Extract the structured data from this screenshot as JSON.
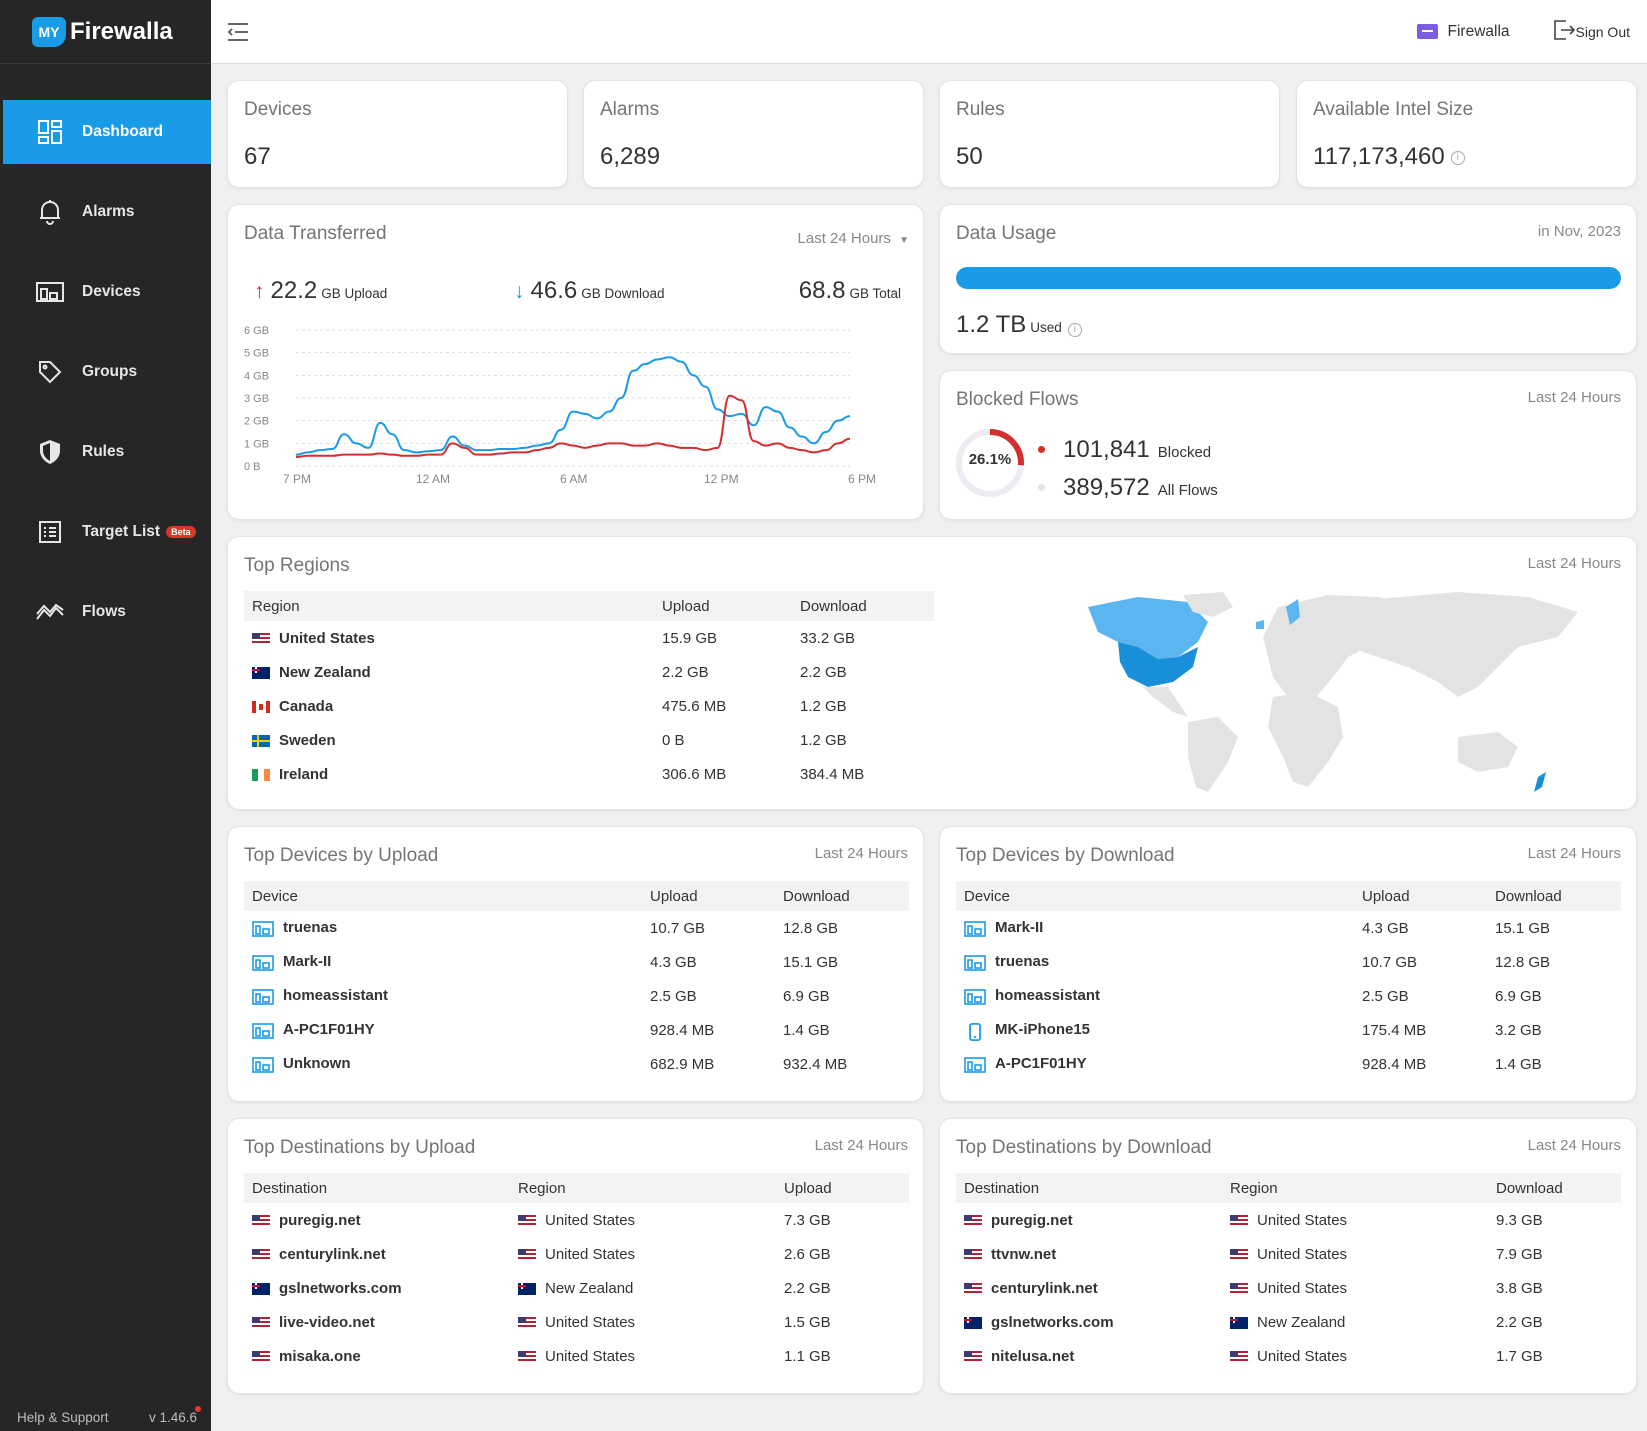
{
  "app": {
    "logo_badge": "MY",
    "logo_text": "Firewalla"
  },
  "sidebar": {
    "items": [
      {
        "label": "Dashboard",
        "icon": "dashboard-icon",
        "active": true
      },
      {
        "label": "Alarms",
        "icon": "bell-icon"
      },
      {
        "label": "Devices",
        "icon": "devices-icon"
      },
      {
        "label": "Groups",
        "icon": "tag-icon"
      },
      {
        "label": "Rules",
        "icon": "shield-icon"
      },
      {
        "label": "Target List",
        "icon": "list-icon",
        "badge": "Beta"
      },
      {
        "label": "Flows",
        "icon": "flows-icon"
      }
    ],
    "help": "Help & Support",
    "version": "v 1.46.6"
  },
  "header": {
    "box_name": "Firewalla",
    "signout": "Sign Out"
  },
  "stats": [
    {
      "label": "Devices",
      "value": "67"
    },
    {
      "label": "Alarms",
      "value": "6,289"
    },
    {
      "label": "Rules",
      "value": "50"
    },
    {
      "label": "Available Intel Size",
      "value": "117,173,460",
      "info": "i"
    }
  ],
  "data_transferred": {
    "title": "Data Transferred",
    "period": "Last 24 Hours",
    "upload": {
      "value": "22.2",
      "unit": "GB Upload"
    },
    "download": {
      "value": "46.6",
      "unit": "GB Download"
    },
    "total": {
      "value": "68.8",
      "unit": "GB Total"
    }
  },
  "chart_data": {
    "type": "line",
    "x_ticks": [
      "7 PM",
      "12 AM",
      "6 AM",
      "12 PM",
      "6 PM"
    ],
    "y_ticks": [
      "0 B",
      "1 GB",
      "2 GB",
      "3 GB",
      "4 GB",
      "5 GB",
      "6 GB"
    ],
    "ylim": [
      0,
      6
    ],
    "x_range": [
      0,
      23
    ],
    "grid": true,
    "series": [
      {
        "color": "#1a9be8",
        "x": [
          0,
          0.5,
          1,
          1.5,
          2,
          2.5,
          3,
          3.5,
          4,
          4.5,
          5,
          5.5,
          6,
          6.5,
          7,
          7.5,
          8,
          8.5,
          9,
          9.5,
          10,
          10.5,
          11,
          11.5,
          12,
          12.5,
          13,
          13.5,
          14,
          14.5,
          15,
          15.5,
          16,
          16.5,
          17,
          17.5,
          18,
          18.5,
          19,
          19.5,
          20,
          20.5,
          21,
          21.5,
          22,
          22.5,
          23
        ],
        "values": [
          0.5,
          0.6,
          0.7,
          0.75,
          1.4,
          1.0,
          0.8,
          1.9,
          1.4,
          0.7,
          0.6,
          0.65,
          0.7,
          1.3,
          0.9,
          0.7,
          0.7,
          0.75,
          0.75,
          0.8,
          0.9,
          1.0,
          1.6,
          2.4,
          2.3,
          2.1,
          2.4,
          3.0,
          4.2,
          4.5,
          4.7,
          4.8,
          4.6,
          4.0,
          3.5,
          2.5,
          2.2,
          2.3,
          1.8,
          2.6,
          2.4,
          1.7,
          1.3,
          1.0,
          1.5,
          2.0,
          2.2
        ]
      },
      {
        "color": "#d32f2f",
        "x": [
          0,
          0.5,
          1,
          1.5,
          2,
          2.5,
          3,
          3.5,
          4,
          4.5,
          5,
          5.5,
          6,
          6.5,
          7,
          7.5,
          8,
          8.5,
          9,
          9.5,
          10,
          10.5,
          11,
          11.5,
          12,
          12.5,
          13,
          13.5,
          14,
          14.5,
          15,
          15.5,
          16,
          16.5,
          17,
          17.5,
          18,
          18.5,
          19,
          19.5,
          20,
          20.5,
          21,
          21.5,
          22,
          22.5,
          23
        ],
        "values": [
          0.4,
          0.45,
          0.45,
          0.45,
          0.5,
          0.5,
          0.5,
          0.55,
          0.5,
          0.45,
          0.45,
          0.5,
          0.5,
          1.0,
          0.8,
          0.5,
          0.5,
          0.55,
          0.6,
          0.6,
          0.7,
          0.8,
          1.0,
          0.9,
          0.8,
          0.9,
          1.0,
          1.0,
          0.9,
          0.9,
          1.0,
          0.9,
          0.8,
          0.8,
          0.7,
          0.8,
          3.1,
          2.9,
          1.1,
          0.9,
          1.0,
          0.8,
          0.7,
          0.6,
          0.7,
          1.0,
          1.2
        ]
      }
    ]
  },
  "data_usage": {
    "title": "Data Usage",
    "period": "in Nov, 2023",
    "value": "1.2 TB",
    "unit": "Used",
    "fill": 1.0,
    "info": "i"
  },
  "blocked_flows": {
    "title": "Blocked Flows",
    "period": "Last 24 Hours",
    "percent_label": "26.1%",
    "percent": 26.1,
    "blocked": "101,841",
    "blocked_label": "Blocked",
    "all": "389,572",
    "all_label": "All Flows"
  },
  "top_regions": {
    "title": "Top Regions",
    "period": "Last 24 Hours",
    "headers": [
      "Region",
      "Upload",
      "Download"
    ],
    "rows": [
      {
        "flag": "us",
        "name": "United States",
        "upload": "15.9 GB",
        "download": "33.2 GB"
      },
      {
        "flag": "nz",
        "name": "New Zealand",
        "upload": "2.2 GB",
        "download": "2.2 GB"
      },
      {
        "flag": "ca",
        "name": "Canada",
        "upload": "475.6 MB",
        "download": "1.2 GB"
      },
      {
        "flag": "se",
        "name": "Sweden",
        "upload": "0 B",
        "download": "1.2 GB"
      },
      {
        "flag": "ie",
        "name": "Ireland",
        "upload": "306.6 MB",
        "download": "384.4 MB"
      }
    ]
  },
  "top_devices_upload": {
    "title": "Top Devices by Upload",
    "period": "Last 24 Hours",
    "headers": [
      "Device",
      "Upload",
      "Download"
    ],
    "rows": [
      {
        "icon": "computer-icon",
        "name": "truenas",
        "upload": "10.7 GB",
        "download": "12.8 GB"
      },
      {
        "icon": "computer-icon",
        "name": "Mark-II",
        "upload": "4.3 GB",
        "download": "15.1 GB"
      },
      {
        "icon": "computer-icon",
        "name": "homeassistant",
        "upload": "2.5 GB",
        "download": "6.9 GB"
      },
      {
        "icon": "computer-icon",
        "name": "A-PC1F01HY",
        "upload": "928.4 MB",
        "download": "1.4 GB"
      },
      {
        "icon": "computer-icon",
        "name": "Unknown",
        "upload": "682.9 MB",
        "download": "932.4 MB"
      }
    ]
  },
  "top_devices_download": {
    "title": "Top Devices by Download",
    "period": "Last 24 Hours",
    "headers": [
      "Device",
      "Upload",
      "Download"
    ],
    "rows": [
      {
        "icon": "computer-icon",
        "name": "Mark-II",
        "upload": "4.3 GB",
        "download": "15.1 GB"
      },
      {
        "icon": "computer-icon",
        "name": "truenas",
        "upload": "10.7 GB",
        "download": "12.8 GB"
      },
      {
        "icon": "computer-icon",
        "name": "homeassistant",
        "upload": "2.5 GB",
        "download": "6.9 GB"
      },
      {
        "icon": "phone-icon",
        "name": "MK-iPhone15",
        "upload": "175.4 MB",
        "download": "3.2 GB"
      },
      {
        "icon": "computer-icon",
        "name": "A-PC1F01HY",
        "upload": "928.4 MB",
        "download": "1.4 GB"
      }
    ]
  },
  "top_dest_upload": {
    "title": "Top Destinations by Upload",
    "period": "Last 24 Hours",
    "headers": [
      "Destination",
      "Region",
      "Upload"
    ],
    "rows": [
      {
        "name": "puregig.net",
        "flag": "us",
        "region": "United States",
        "value": "7.3 GB"
      },
      {
        "name": "centurylink.net",
        "flag": "us",
        "region": "United States",
        "value": "2.6 GB"
      },
      {
        "name": "gslnetworks.com",
        "flag": "nz",
        "region": "New Zealand",
        "value": "2.2 GB"
      },
      {
        "name": "live-video.net",
        "flag": "us",
        "region": "United States",
        "value": "1.5 GB"
      },
      {
        "name": "misaka.one",
        "flag": "us",
        "region": "United States",
        "value": "1.1 GB"
      }
    ]
  },
  "top_dest_download": {
    "title": "Top Destinations by Download",
    "period": "Last 24 Hours",
    "headers": [
      "Destination",
      "Region",
      "Download"
    ],
    "rows": [
      {
        "name": "puregig.net",
        "flag": "us",
        "region": "United States",
        "value": "9.3 GB"
      },
      {
        "name": "ttvnw.net",
        "flag": "us",
        "region": "United States",
        "value": "7.9 GB"
      },
      {
        "name": "centurylink.net",
        "flag": "us",
        "region": "United States",
        "value": "3.8 GB"
      },
      {
        "name": "gslnetworks.com",
        "flag": "nz",
        "region": "New Zealand",
        "value": "2.2 GB"
      },
      {
        "name": "nitelusa.net",
        "flag": "us",
        "region": "United States",
        "value": "1.7 GB"
      }
    ]
  }
}
